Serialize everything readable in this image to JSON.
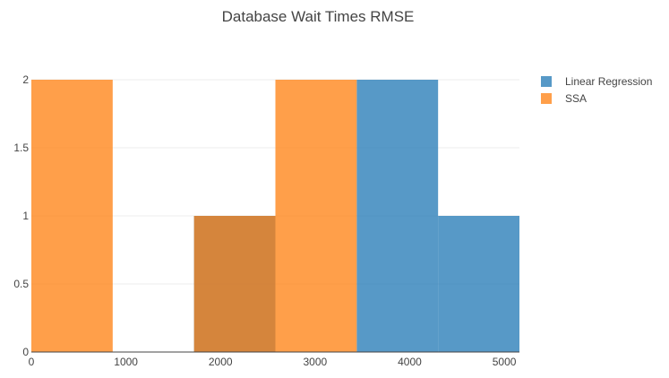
{
  "chart_data": {
    "type": "bar",
    "histogram": true,
    "title": "Database Wait Times RMSE",
    "xlabel": "",
    "ylabel": "",
    "xlim": [
      0,
      5160
    ],
    "ylim": [
      0,
      2
    ],
    "x_ticks": [
      0,
      1000,
      2000,
      3000,
      4000,
      5000
    ],
    "y_ticks": [
      0,
      0.5,
      1,
      1.5,
      2
    ],
    "y_tick_labels": [
      "0",
      "0.5",
      "1",
      "1.5",
      "2"
    ],
    "bins": [
      [
        0,
        860
      ],
      [
        860,
        1720
      ],
      [
        1720,
        2580
      ],
      [
        2580,
        3440
      ],
      [
        3440,
        4300
      ],
      [
        4300,
        5160
      ]
    ],
    "bar_opacity": 0.75,
    "grid": true,
    "legend_position": "top-right",
    "series": [
      {
        "name": "Linear Regression",
        "color": "#1f77b4",
        "values": [
          0,
          0,
          1,
          0,
          2,
          1
        ]
      },
      {
        "name": "SSA",
        "color": "#ff7f0e",
        "values": [
          2,
          0,
          1,
          2,
          0,
          0
        ]
      }
    ]
  }
}
